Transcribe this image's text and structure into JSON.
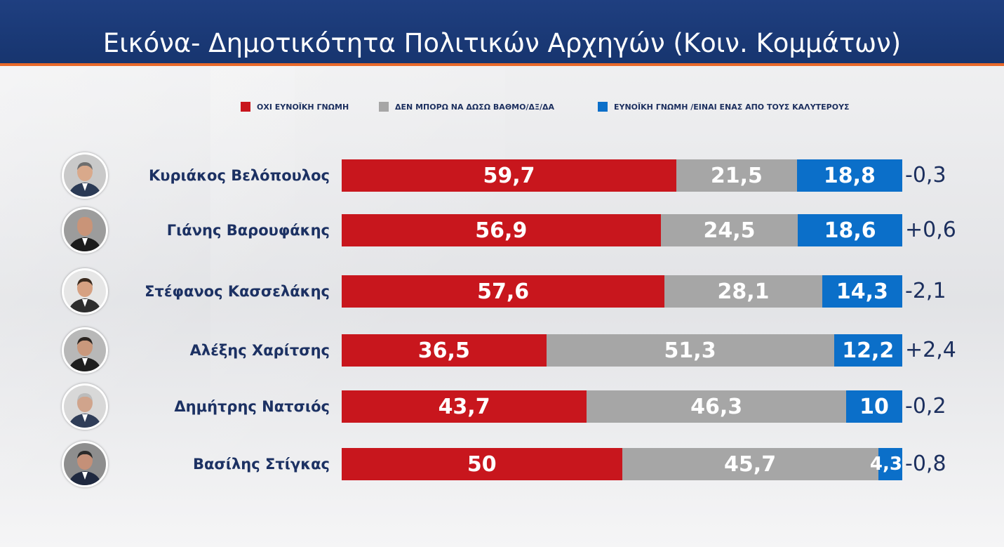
{
  "title": "Εικόνα- Δημοτικότητα Πολιτικών Αρχηγών (Κοιν. Κομμάτων)",
  "chart_data": {
    "type": "bar",
    "stacked": true,
    "orientation": "horizontal",
    "title": "Εικόνα- Δημοτικότητα Πολιτικών Αρχηγών (Κοιν. Κομμάτων)",
    "legend_position": "top",
    "grid": false,
    "xlim": [
      0,
      100
    ],
    "categories": [
      "Κυριάκος Βελόπουλος",
      "Γιάνης Βαρουφάκης",
      "Στέφανος Κασσελάκης",
      "Αλέξης Χαρίτσης",
      "Δημήτρης Νατσιός",
      "Βασίλης Στίγκας"
    ],
    "series": [
      {
        "name": "ΟΧΙ ΕΥΝΟΪΚΗ ΓΝΩΜΗ",
        "color": "#c8161d",
        "values": [
          59.7,
          56.9,
          57.6,
          36.5,
          43.7,
          50
        ],
        "labels": [
          "59,7",
          "56,9",
          "57,6",
          "36,5",
          "43,7",
          "50"
        ]
      },
      {
        "name": "ΔΕΝ ΜΠΟΡΩ ΝΑ ΔΩΣΩ ΒΑΘΜΟ/ΔΞ/ΔΑ",
        "color": "#a6a6a6",
        "values": [
          21.5,
          24.5,
          28.1,
          51.3,
          46.3,
          45.7
        ],
        "labels": [
          "21,5",
          "24,5",
          "28,1",
          "51,3",
          "46,3",
          "45,7"
        ]
      },
      {
        "name": "ΕΥΝΟΪΚΗ ΓΝΩΜΗ /ΕΙΝΑΙ ΕΝΑΣ ΑΠΟ ΤΟΥΣ ΚΑΛΥΤΕΡΟΥΣ",
        "color": "#0b6fc9",
        "values": [
          18.8,
          18.6,
          14.3,
          12.2,
          10,
          4.3
        ],
        "labels": [
          "18,8",
          "18,6",
          "14,3",
          "12,2",
          "10",
          "4,3"
        ]
      }
    ],
    "changes": [
      "-0,3",
      "+0,6",
      "-2,1",
      "+2,4",
      "-0,2",
      "-0,8"
    ]
  },
  "avatars": [
    {
      "icon": "person-photo-icon",
      "suit": "#2b3a55",
      "skin": "#d9a98b",
      "hair": "#6e6e6e",
      "bg": "#c9c9c9"
    },
    {
      "icon": "person-photo-icon",
      "suit": "#1b1b1b",
      "skin": "#c99478",
      "hair": "#c99478",
      "bg": "#9c9c9c"
    },
    {
      "icon": "person-photo-icon",
      "suit": "#2e2e2e",
      "skin": "#d6a182",
      "hair": "#3a2a1e",
      "bg": "#e6e6e6"
    },
    {
      "icon": "person-photo-icon",
      "suit": "#1e1e1e",
      "skin": "#c9987c",
      "hair": "#2a2420",
      "bg": "#b8b8b8"
    },
    {
      "icon": "person-photo-icon",
      "suit": "#2f3d58",
      "skin": "#d0a48c",
      "hair": "#bcbcbc",
      "bg": "#d8d8d8"
    },
    {
      "icon": "person-photo-icon",
      "suit": "#1f2940",
      "skin": "#c49078",
      "hair": "#2a2a2a",
      "bg": "#8e8e8e"
    }
  ]
}
